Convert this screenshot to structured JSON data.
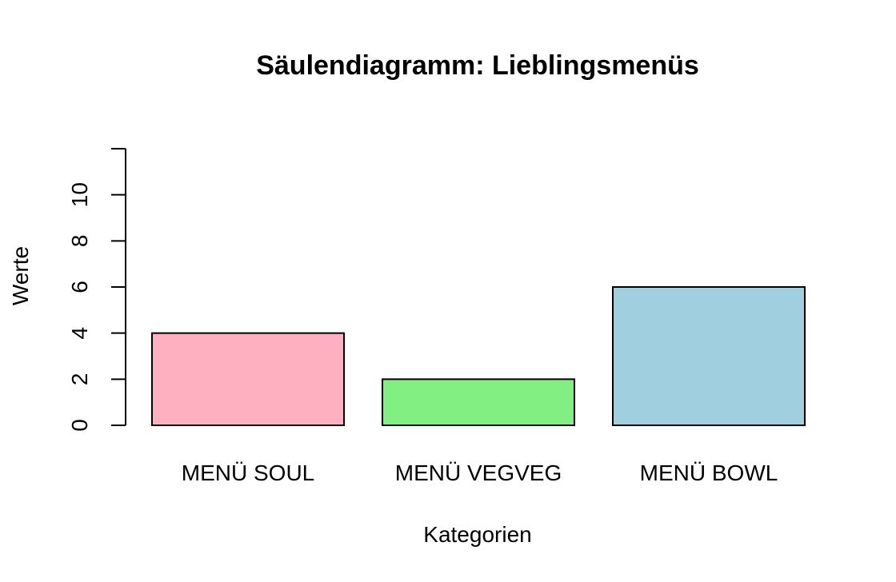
{
  "chart_data": {
    "type": "bar",
    "title": "Säulendiagramm: Lieblingsmenüs",
    "xlabel": "Kategorien",
    "ylabel": "Werte",
    "categories": [
      "MENÜ SOUL",
      "MENÜ VEGVEG",
      "MENÜ BOWL"
    ],
    "values": [
      4,
      2,
      6
    ],
    "colors": [
      "#ffb0c0",
      "#82ef82",
      "#a0cfe0"
    ],
    "ylim": [
      0,
      12
    ],
    "yticks": [
      0,
      2,
      4,
      6,
      8,
      10
    ],
    "yticks_labels": [
      "0",
      "2",
      "4",
      "6",
      "8",
      "10"
    ],
    "grid": false,
    "legend": "none"
  }
}
